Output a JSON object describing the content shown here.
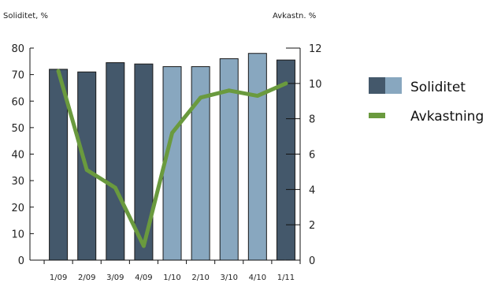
{
  "chart_data": {
    "type": "bar",
    "categories": [
      "1/09",
      "2/09",
      "3/09",
      "4/09",
      "1/10",
      "2/10",
      "3/10",
      "4/10",
      "1/11"
    ],
    "left_axis_title": "Soliditet, %",
    "right_axis_title": "Avkastn. %",
    "ylim_left": [
      0,
      80
    ],
    "ylim_right": [
      0,
      12
    ],
    "yticks_left": [
      0,
      10,
      20,
      30,
      40,
      50,
      60,
      70,
      80
    ],
    "yticks_right": [
      0,
      2,
      4,
      6,
      8,
      10,
      12
    ],
    "grid": false,
    "legend_position": "right",
    "series": [
      {
        "name": "Soliditet",
        "type": "bar",
        "axis": "left",
        "values": [
          72,
          71,
          74.5,
          74,
          73,
          73,
          76,
          78,
          75.5
        ],
        "bar_colors": [
          "#44586b",
          "#44586b",
          "#44586b",
          "#44586b",
          "#88a7bf",
          "#88a7bf",
          "#88a7bf",
          "#88a7bf",
          "#44586b"
        ]
      },
      {
        "name": "Avkastning",
        "type": "line",
        "axis": "right",
        "color": "#6a9a3e",
        "values": [
          10.7,
          5.1,
          4.1,
          0.8,
          7.2,
          9.2,
          9.6,
          9.3,
          10
        ]
      }
    ],
    "legend": [
      {
        "label": "Soliditet",
        "swatch_colors": [
          "#44586b",
          "#88a7bf"
        ]
      },
      {
        "label": "Avkastning",
        "swatch_color": "#6a9a3e"
      }
    ]
  }
}
